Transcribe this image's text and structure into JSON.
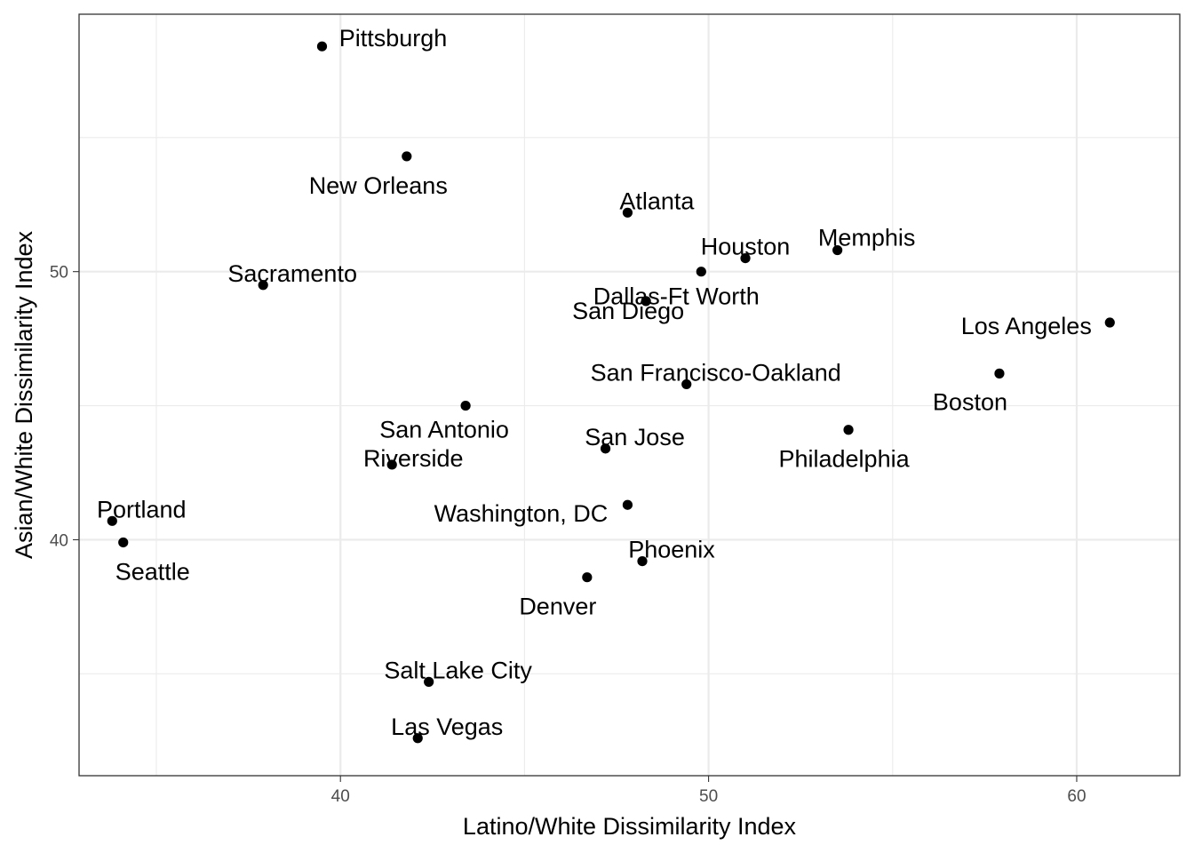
{
  "chart_data": {
    "type": "scatter",
    "title": "",
    "xlabel": "Latino/White Dissimilarity Index",
    "ylabel": "Asian/White Dissimilarity Index",
    "xlim": [
      32.9,
      62.8
    ],
    "ylim": [
      31.2,
      59.6
    ],
    "x_ticks": [
      40,
      50,
      60
    ],
    "y_ticks": [
      40,
      50
    ],
    "x_tick_labels": [
      "40",
      "50",
      "60"
    ],
    "y_tick_labels": [
      "40",
      "50"
    ],
    "grid": true,
    "legend": "none",
    "points": [
      {
        "label": "Pittsburgh",
        "x": 39.5,
        "y": 58.4
      },
      {
        "label": "New Orleans",
        "x": 41.8,
        "y": 54.3
      },
      {
        "label": "Atlanta",
        "x": 47.8,
        "y": 52.2
      },
      {
        "label": "Memphis",
        "x": 53.5,
        "y": 50.8
      },
      {
        "label": "Houston",
        "x": 51.0,
        "y": 50.5
      },
      {
        "label": "Sacramento",
        "x": 37.9,
        "y": 49.5
      },
      {
        "label": "Dallas-Ft Worth",
        "x": 49.8,
        "y": 50.0
      },
      {
        "label": "San Diego",
        "x": 48.3,
        "y": 48.9
      },
      {
        "label": "Los Angeles",
        "x": 60.9,
        "y": 48.1
      },
      {
        "label": "Boston",
        "x": 57.9,
        "y": 46.2
      },
      {
        "label": "San Francisco-Oakland",
        "x": 49.4,
        "y": 45.8
      },
      {
        "label": "San Antonio",
        "x": 43.4,
        "y": 45.0
      },
      {
        "label": "Philadelphia",
        "x": 53.8,
        "y": 44.1
      },
      {
        "label": "San Jose",
        "x": 47.2,
        "y": 43.4
      },
      {
        "label": "Riverside",
        "x": 41.4,
        "y": 42.8
      },
      {
        "label": "Washington, DC",
        "x": 47.8,
        "y": 41.3
      },
      {
        "label": "Portland",
        "x": 33.8,
        "y": 40.7
      },
      {
        "label": "Seattle",
        "x": 34.1,
        "y": 39.9
      },
      {
        "label": "Phoenix",
        "x": 48.2,
        "y": 39.2
      },
      {
        "label": "Denver",
        "x": 46.7,
        "y": 38.6
      },
      {
        "label": "Salt Lake City",
        "x": 42.4,
        "y": 34.7
      },
      {
        "label": "Las Vegas",
        "x": 42.1,
        "y": 32.6
      }
    ]
  }
}
